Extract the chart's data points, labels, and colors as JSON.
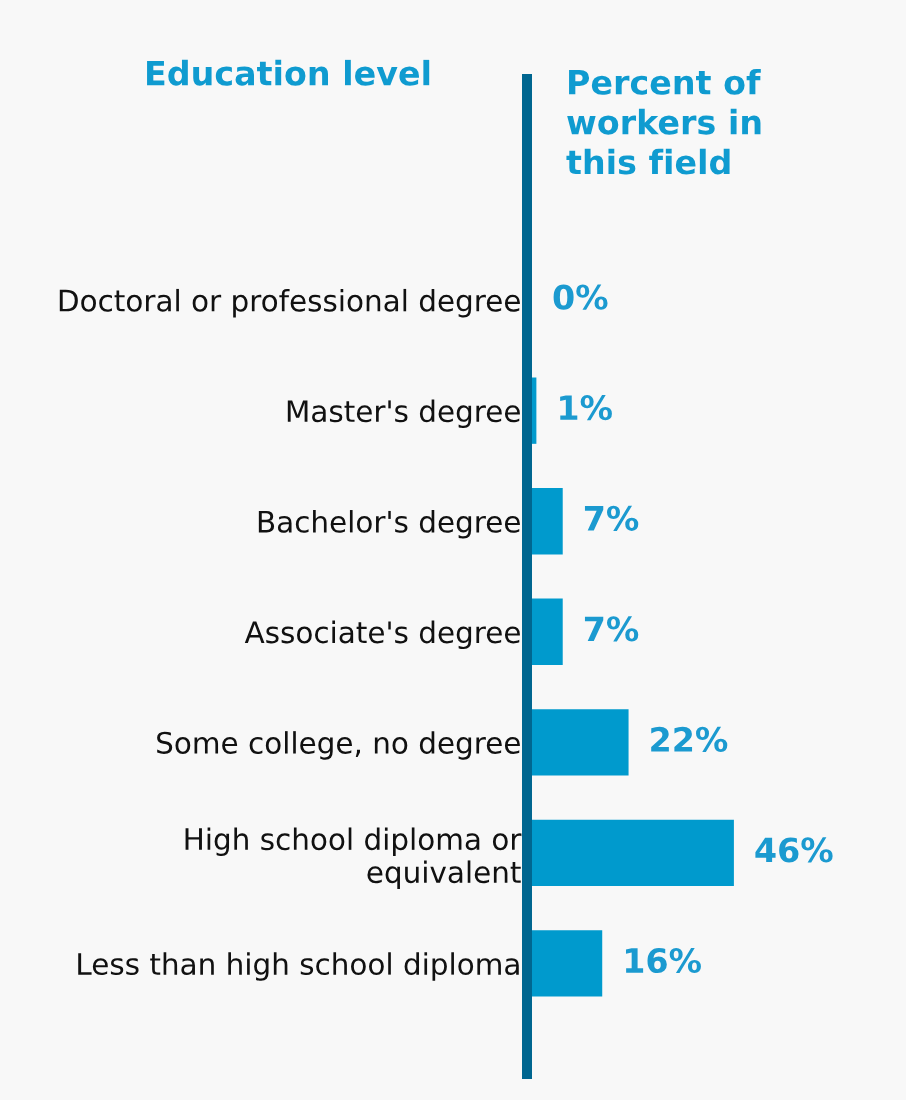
{
  "chart_data": {
    "type": "bar",
    "orientation": "horizontal",
    "xlabel": "Percent of\nworkers in\nthis field",
    "annotations": [
      "Education level"
    ],
    "categories": [
      "Doctoral or professional degree",
      "Master's degree",
      "Bachelor's degree",
      "Associate's degree",
      "Some college, no degree",
      "High school diploma or\nequivalent",
      "Less than high school diploma"
    ],
    "values": [
      0,
      1,
      7,
      7,
      22,
      46,
      16
    ],
    "value_labels": [
      "0%",
      "1%",
      "7%",
      "7%",
      "22%",
      "46%",
      "16%"
    ],
    "color": "#009acd",
    "tick_labels": "y"
  }
}
